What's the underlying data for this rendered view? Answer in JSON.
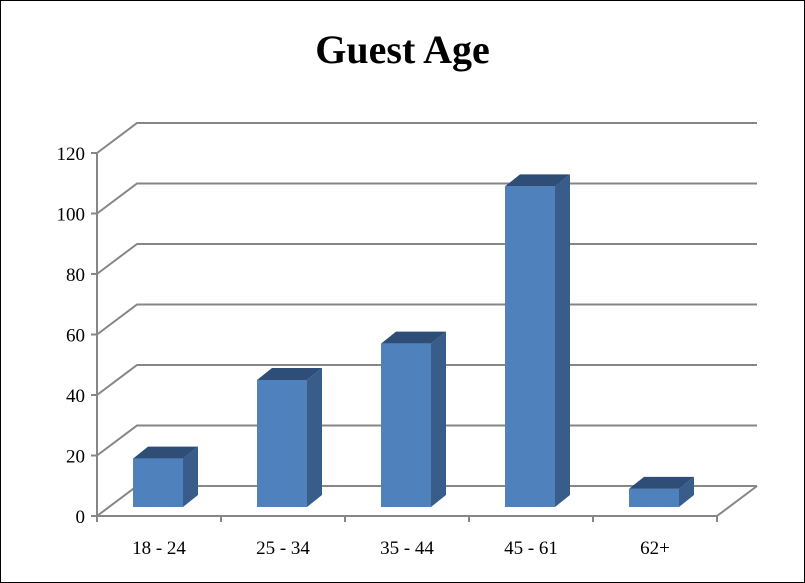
{
  "chart_data": {
    "type": "bar",
    "title": "Guest Age",
    "xlabel": "",
    "ylabel": "",
    "categories": [
      "18 - 24",
      "25 - 34",
      "35 - 44",
      "45 - 61",
      "62+"
    ],
    "values": [
      16,
      42,
      54,
      106,
      6
    ],
    "ylim": [
      0,
      120
    ],
    "yticks": [
      0,
      20,
      40,
      60,
      80,
      100,
      120
    ],
    "grid": true,
    "legend": "none",
    "style": "3d-column",
    "colors": {
      "bar_front": "#4F81BD",
      "bar_side": "#385D8A",
      "bar_top": "#2E4E78",
      "grid": "#868686",
      "axis": "#868686"
    }
  }
}
